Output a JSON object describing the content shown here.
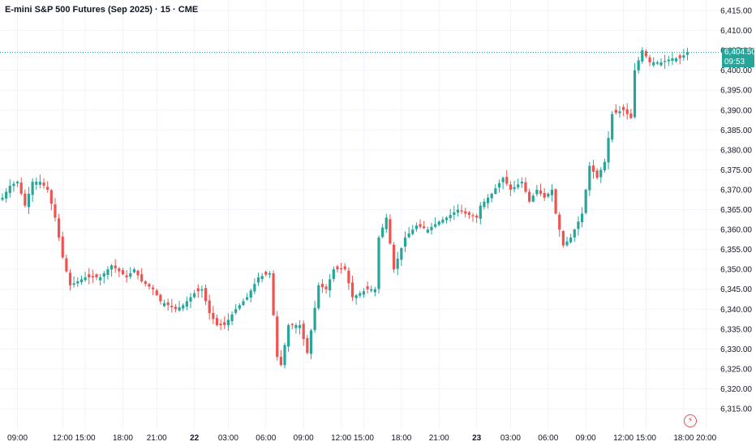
{
  "header": {
    "title": "E-mini S&P 500 Futures (Sep 2025) · 15 · CME"
  },
  "price_badge": {
    "price": "6,404.50",
    "countdown": "09:53",
    "color": "#26a69a"
  },
  "colors": {
    "up": "#26a69a",
    "down": "#ef5350",
    "grid": "#f0f3fa",
    "axis_text": "#131722"
  },
  "icons": {
    "flash": "lightning-icon"
  },
  "chart_data": {
    "type": "candlestick",
    "title": "E-mini S&P 500 Futures (Sep 2025) · 15 · CME",
    "ylim": [
      6313,
      6418
    ],
    "y_ticks": [
      "6,315.00",
      "6,320.00",
      "6,325.00",
      "6,330.00",
      "6,335.00",
      "6,340.00",
      "6,345.00",
      "6,350.00",
      "6,355.00",
      "6,360.00",
      "6,365.00",
      "6,370.00",
      "6,375.00",
      "6,380.00",
      "6,385.00",
      "6,390.00",
      "6,395.00",
      "6,400.00",
      "6,405.00",
      "6,410.00",
      "6,415.00"
    ],
    "x_ticks": [
      {
        "label": "09:00",
        "bar": 4
      },
      {
        "label": "12:00",
        "bar": 16
      },
      {
        "label": "15:00",
        "bar": 22
      },
      {
        "label": "18:00",
        "bar": 32
      },
      {
        "label": "21:00",
        "bar": 41
      },
      {
        "label": "22",
        "bar": 51,
        "bold": true
      },
      {
        "label": "03:00",
        "bar": 60
      },
      {
        "label": "06:00",
        "bar": 70
      },
      {
        "label": "09:00",
        "bar": 80
      },
      {
        "label": "12:00",
        "bar": 90
      },
      {
        "label": "15:00",
        "bar": 96
      },
      {
        "label": "18:00",
        "bar": 106
      },
      {
        "label": "21:00",
        "bar": 116
      },
      {
        "label": "23",
        "bar": 126,
        "bold": true
      },
      {
        "label": "03:00",
        "bar": 135
      },
      {
        "label": "06:00",
        "bar": 145
      },
      {
        "label": "09:00",
        "bar": 155
      },
      {
        "label": "12:00",
        "bar": 165
      },
      {
        "label": "15:00",
        "bar": 171
      },
      {
        "label": "18:00",
        "bar": 181
      },
      {
        "label": "20:00",
        "bar": 187
      }
    ],
    "last_price": 6404.5,
    "anchors": [
      [
        0,
        6368
      ],
      [
        2,
        6371
      ],
      [
        4,
        6372
      ],
      [
        6,
        6366
      ],
      [
        8,
        6372
      ],
      [
        10,
        6372
      ],
      [
        12,
        6370
      ],
      [
        14,
        6363
      ],
      [
        16,
        6353
      ],
      [
        18,
        6346
      ],
      [
        20,
        6347
      ],
      [
        22,
        6348
      ],
      [
        26,
        6348
      ],
      [
        29,
        6351
      ],
      [
        33,
        6348
      ],
      [
        35,
        6350
      ],
      [
        37,
        6347
      ],
      [
        40,
        6345
      ],
      [
        42,
        6342
      ],
      [
        46,
        6340
      ],
      [
        48,
        6341
      ],
      [
        51,
        6344
      ],
      [
        53,
        6345
      ],
      [
        55,
        6339
      ],
      [
        57,
        6336
      ],
      [
        59,
        6336
      ],
      [
        62,
        6340
      ],
      [
        65,
        6343
      ],
      [
        68,
        6348
      ],
      [
        71,
        6349
      ],
      [
        73,
        6328
      ],
      [
        74,
        6326
      ],
      [
        76,
        6336
      ],
      [
        79,
        6336
      ],
      [
        81,
        6329
      ],
      [
        84,
        6346
      ],
      [
        86,
        6345
      ],
      [
        88,
        6350
      ],
      [
        91,
        6350
      ],
      [
        93,
        6343
      ],
      [
        97,
        6345
      ],
      [
        99,
        6345
      ],
      [
        100,
        6358
      ],
      [
        102,
        6363
      ],
      [
        104,
        6350
      ],
      [
        107,
        6358
      ],
      [
        110,
        6361
      ],
      [
        113,
        6360
      ],
      [
        116,
        6362
      ],
      [
        118,
        6363
      ],
      [
        121,
        6365
      ],
      [
        123,
        6364
      ],
      [
        126,
        6363
      ],
      [
        127,
        6366
      ],
      [
        130,
        6369
      ],
      [
        133,
        6373
      ],
      [
        135,
        6370
      ],
      [
        138,
        6372
      ],
      [
        140,
        6367
      ],
      [
        142,
        6370
      ],
      [
        144,
        6368
      ],
      [
        146,
        6370
      ],
      [
        147,
        6364
      ],
      [
        149,
        6356
      ],
      [
        151,
        6358
      ],
      [
        154,
        6364
      ],
      [
        156,
        6376
      ],
      [
        158,
        6373
      ],
      [
        160,
        6377
      ],
      [
        162,
        6389
      ],
      [
        165,
        6390
      ],
      [
        167,
        6388
      ],
      [
        168,
        6400
      ],
      [
        170,
        6405
      ],
      [
        172,
        6402
      ],
      [
        175,
        6402
      ],
      [
        178,
        6403
      ],
      [
        180,
        6403
      ],
      [
        182,
        6404.5
      ]
    ]
  }
}
